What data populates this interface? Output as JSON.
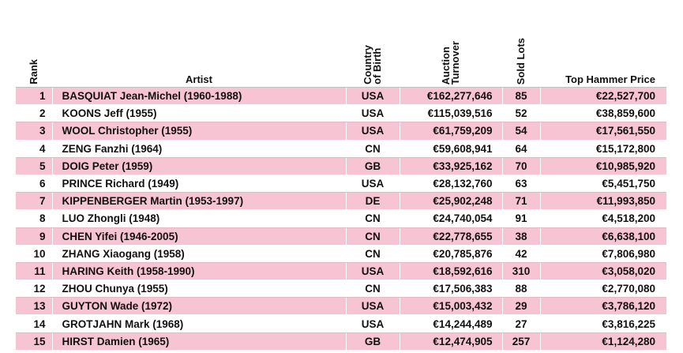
{
  "headers": {
    "rank": "Rank",
    "artist": "Artist",
    "country": "Country\nof Birth",
    "turnover": "Auction\nTurnover",
    "lots": "Sold Lots",
    "price": "Top Hammer Price"
  },
  "chart_data": {
    "type": "table",
    "columns": [
      "Rank",
      "Artist",
      "Country of Birth",
      "Auction Turnover",
      "Sold Lots",
      "Top Hammer Price"
    ],
    "rows": [
      [
        "1",
        "BASQUIAT Jean-Michel (1960-1988)",
        "USA",
        "€162,277,646",
        "85",
        "€22,527,700"
      ],
      [
        "2",
        "KOONS Jeff (1955)",
        "USA",
        "€115,039,516",
        "52",
        "€38,859,600"
      ],
      [
        "3",
        "WOOL Christopher (1955)",
        "USA",
        "€61,759,209",
        "54",
        "€17,561,550"
      ],
      [
        "4",
        "ZENG Fanzhi (1964)",
        "CN",
        "€59,608,941",
        "64",
        "€15,172,800"
      ],
      [
        "5",
        "DOIG Peter (1959)",
        "GB",
        "€33,925,162",
        "70",
        "€10,985,920"
      ],
      [
        "6",
        "PRINCE Richard (1949)",
        "USA",
        "€28,132,760",
        "63",
        "€5,451,750"
      ],
      [
        "7",
        "KIPPENBERGER Martin (1953-1997)",
        "DE",
        "€25,902,248",
        "71",
        "€11,993,850"
      ],
      [
        "8",
        "LUO Zhongli (1948)",
        "CN",
        "€24,740,054",
        "91",
        "€4,518,200"
      ],
      [
        "9",
        "CHEN Yifei (1946-2005)",
        "CN",
        "€22,778,655",
        "38",
        "€6,638,100"
      ],
      [
        "10",
        "ZHANG Xiaogang (1958)",
        "CN",
        "€20,785,876",
        "42",
        "€7,806,980"
      ],
      [
        "11",
        "HARING Keith (1958-1990)",
        "USA",
        "€18,592,616",
        "310",
        "€3,058,020"
      ],
      [
        "12",
        "ZHOU Chunya (1955)",
        "CN",
        "€17,506,383",
        "88",
        "€2,770,080"
      ],
      [
        "13",
        "GUYTON Wade (1972)",
        "USA",
        "€15,003,432",
        "29",
        "€3,786,120"
      ],
      [
        "14",
        "GROTJAHN Mark (1968)",
        "USA",
        "€14,244,489",
        "27",
        "€3,816,225"
      ],
      [
        "15",
        "HIRST Damien (1965)",
        "GB",
        "€12,474,905",
        "257",
        "€1,124,280"
      ]
    ]
  },
  "colors": {
    "row_highlight": "#f6c4d3",
    "row_plain": "#ffffff"
  }
}
